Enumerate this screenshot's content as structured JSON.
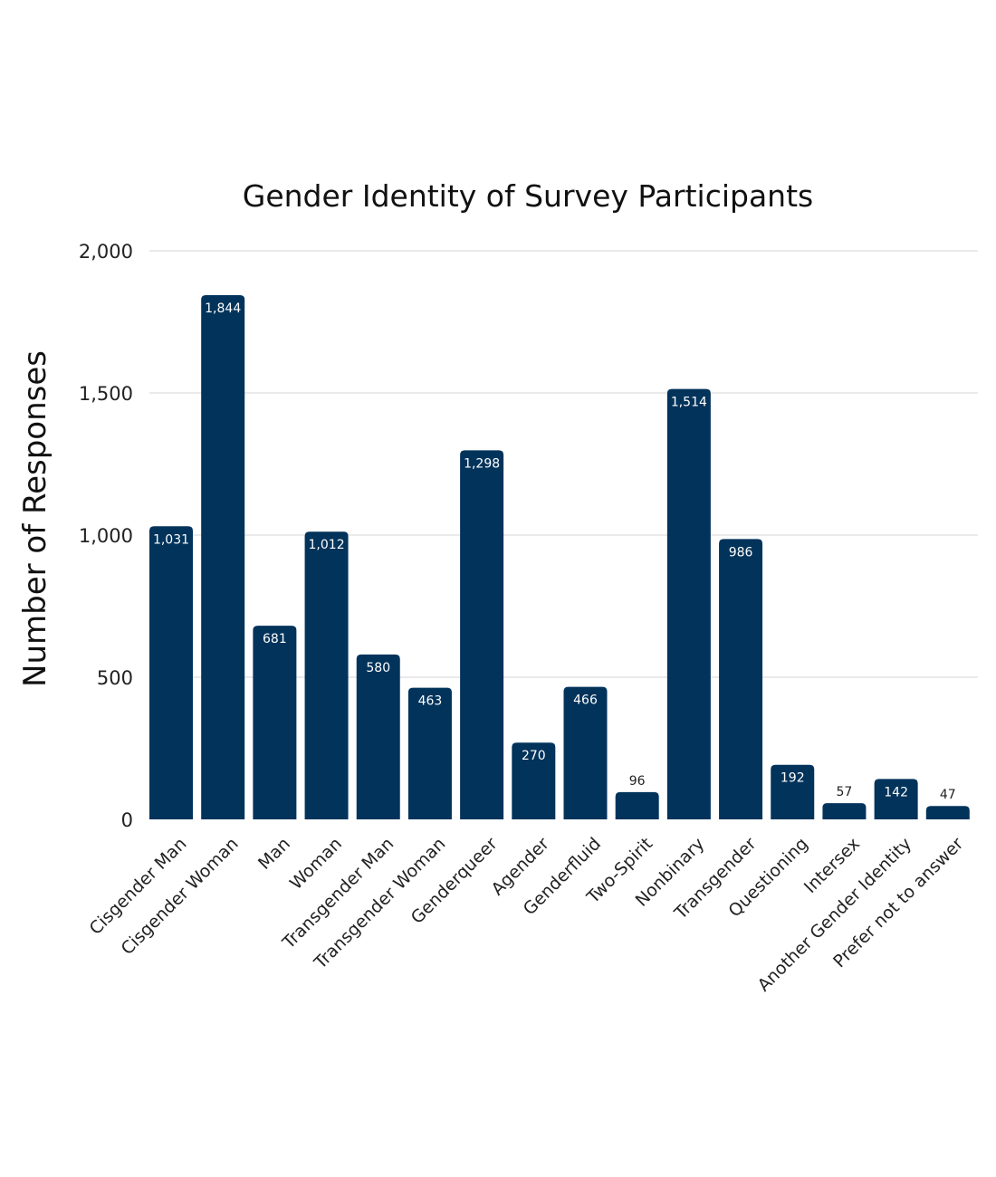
{
  "chart_data": {
    "type": "bar",
    "title": "Gender Identity of Survey Participants",
    "ylabel": "Number of Responses",
    "xlabel": "",
    "ylim": [
      0,
      2000
    ],
    "yticks": [
      0,
      500,
      1000,
      1500,
      2000
    ],
    "ytick_labels": [
      "0",
      "500",
      "1,000",
      "1,500",
      "2,000"
    ],
    "grid": true,
    "legend": "none",
    "colors": {
      "bar": "#02335b",
      "grid": "#d5d5d5"
    },
    "categories": [
      "Cisgender Man",
      "Cisgender Woman",
      "Man",
      "Woman",
      "Transgender Man",
      "Transgender Woman",
      "Genderqueer",
      "Agender",
      "Genderfluid",
      "Two-Spirit",
      "Nonbinary",
      "Transgender",
      "Questioning",
      "Intersex",
      "Another Gender Identity",
      "Prefer not to answer"
    ],
    "values": [
      1031,
      1844,
      681,
      1012,
      580,
      463,
      1298,
      270,
      466,
      96,
      1514,
      986,
      192,
      57,
      142,
      47
    ],
    "data_labels": [
      "1,031",
      "1,844",
      "681",
      "1,012",
      "580",
      "463",
      "1,298",
      "270",
      "466",
      "96",
      "1,514",
      "986",
      "192",
      "57",
      "142",
      "47"
    ]
  }
}
